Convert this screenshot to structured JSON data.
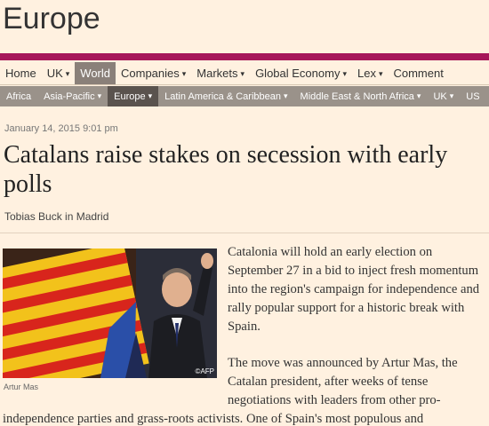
{
  "section": {
    "title": "Europe"
  },
  "nav_primary": [
    {
      "label": "Home",
      "caret": false,
      "active": false
    },
    {
      "label": "UK",
      "caret": true,
      "active": false
    },
    {
      "label": "World",
      "caret": false,
      "active": true
    },
    {
      "label": "Companies",
      "caret": true,
      "active": false
    },
    {
      "label": "Markets",
      "caret": true,
      "active": false
    },
    {
      "label": "Global Economy",
      "caret": true,
      "active": false
    },
    {
      "label": "Lex",
      "caret": true,
      "active": false
    },
    {
      "label": "Comment",
      "caret": false,
      "active": false
    }
  ],
  "nav_secondary": [
    {
      "label": "Africa",
      "caret": false,
      "active": false
    },
    {
      "label": "Asia-Pacific",
      "caret": true,
      "active": false
    },
    {
      "label": "Europe",
      "caret": true,
      "active": true
    },
    {
      "label": "Latin America & Caribbean",
      "caret": true,
      "active": false
    },
    {
      "label": "Middle East & North Africa",
      "caret": true,
      "active": false
    },
    {
      "label": "UK",
      "caret": true,
      "active": false
    },
    {
      "label": "US",
      "caret": false,
      "active": false
    }
  ],
  "article": {
    "date": "January 14, 2015 9:01 pm",
    "headline": "Catalans raise stakes on secession with early polls",
    "byline": "Tobias Buck in Madrid",
    "image_caption": "Artur Mas",
    "image_credit": "©AFP",
    "paragraph1": "Catalonia will hold an early election on September 27 in a bid to inject fresh momentum into the region's campaign for independence and rally popular support for a historic break with Spain.",
    "paragraph2_start": "The move was announced by Artur Mas, the Catalan president, after weeks of tense negotiations with leaders from other pro-",
    "paragraph2_cont": "independence parties and grass-roots activists. One of Spain's most populous and"
  },
  "colors": {
    "background": "#fff1e0",
    "accent_bar": "#a6175a",
    "nav_active": "#8a8079",
    "subnav_bg": "#9a928a",
    "subnav_active": "#5a534e"
  },
  "icons": {
    "dropdown": "chevron-down-icon"
  }
}
